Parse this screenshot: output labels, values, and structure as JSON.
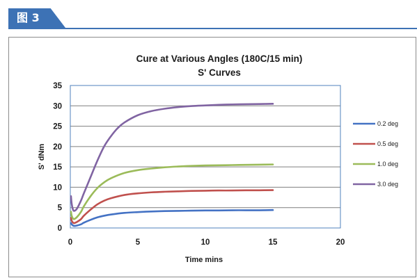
{
  "figure_label": "图 3",
  "chart_data": {
    "type": "line",
    "title": "Cure at Various Angles (180C/15 min)",
    "subtitle": "S' Curves",
    "xlabel": "Time mins",
    "ylabel": "S' dNm",
    "xlim": [
      0,
      20
    ],
    "ylim": [
      0,
      35
    ],
    "x_ticks": [
      0,
      5,
      10,
      15,
      20
    ],
    "y_ticks": [
      0,
      5,
      10,
      15,
      20,
      25,
      30,
      35
    ],
    "grid": "horizontal",
    "legend_position": "right",
    "colors": {
      "plot_border": "#4f81bd",
      "grid": "#7f7f7f"
    },
    "series": [
      {
        "name": "0.2 deg",
        "color": "#4472c4",
        "x": [
          0.05,
          0.1,
          0.2,
          0.3,
          0.5,
          0.8,
          1.0,
          1.5,
          2.0,
          2.5,
          3.0,
          4.0,
          5.0,
          6.0,
          7.0,
          8.0,
          9.0,
          10.0,
          11.0,
          12.0,
          13.0,
          14.0,
          15.0
        ],
        "y": [
          1.2,
          0.9,
          0.6,
          0.5,
          0.6,
          0.9,
          1.3,
          2.0,
          2.6,
          3.0,
          3.3,
          3.7,
          3.9,
          4.05,
          4.15,
          4.2,
          4.25,
          4.3,
          4.3,
          4.35,
          4.35,
          4.35,
          4.4
        ]
      },
      {
        "name": "0.5 deg",
        "color": "#c0504d",
        "x": [
          0.05,
          0.1,
          0.2,
          0.3,
          0.5,
          0.8,
          1.0,
          1.5,
          2.0,
          2.5,
          3.0,
          4.0,
          5.0,
          6.0,
          7.0,
          8.0,
          9.0,
          10.0,
          11.0,
          12.0,
          13.0,
          14.0,
          15.0
        ],
        "y": [
          2.5,
          1.8,
          1.3,
          1.2,
          1.5,
          2.2,
          3.0,
          4.5,
          5.8,
          6.7,
          7.3,
          8.1,
          8.5,
          8.75,
          8.9,
          9.0,
          9.1,
          9.15,
          9.2,
          9.2,
          9.25,
          9.25,
          9.3
        ]
      },
      {
        "name": "1.0 deg",
        "color": "#9bbb59",
        "x": [
          0.05,
          0.1,
          0.2,
          0.3,
          0.5,
          0.8,
          1.0,
          1.5,
          2.0,
          2.5,
          3.0,
          4.0,
          5.0,
          6.0,
          7.0,
          8.0,
          9.0,
          10.0,
          11.0,
          12.0,
          13.0,
          14.0,
          15.0
        ],
        "y": [
          4.0,
          3.0,
          2.3,
          2.2,
          2.7,
          4.0,
          5.3,
          7.8,
          9.8,
          11.2,
          12.2,
          13.5,
          14.2,
          14.6,
          14.9,
          15.1,
          15.25,
          15.35,
          15.4,
          15.45,
          15.5,
          15.55,
          15.6
        ]
      },
      {
        "name": "3.0 deg",
        "color": "#8064a2",
        "x": [
          0.05,
          0.1,
          0.2,
          0.3,
          0.5,
          0.8,
          1.0,
          1.5,
          2.0,
          2.5,
          3.0,
          3.5,
          4.0,
          5.0,
          6.0,
          7.0,
          8.0,
          9.0,
          10.0,
          11.0,
          12.0,
          13.0,
          14.0,
          15.0
        ],
        "y": [
          7.8,
          6.0,
          4.5,
          4.2,
          4.8,
          6.8,
          8.5,
          12.5,
          16.5,
          20.0,
          22.5,
          24.5,
          25.9,
          27.7,
          28.7,
          29.3,
          29.7,
          29.95,
          30.1,
          30.25,
          30.35,
          30.4,
          30.45,
          30.5
        ]
      }
    ]
  }
}
